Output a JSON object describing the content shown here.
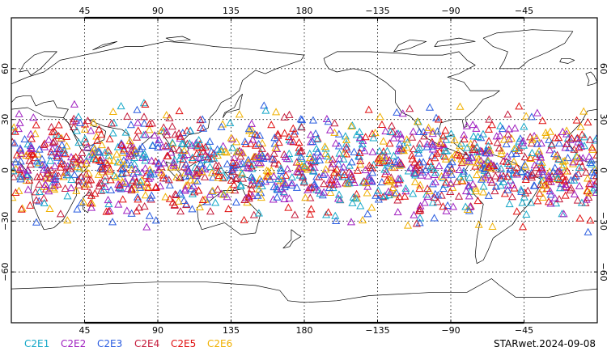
{
  "map": {
    "projection": "equirectangular",
    "lon_range": [
      0,
      360
    ],
    "lat_range": [
      -90,
      90
    ],
    "central_meridian": 180,
    "gridlines": "dotted",
    "lon_ticks": [
      {
        "value": 45,
        "label": "45"
      },
      {
        "value": 90,
        "label": "90"
      },
      {
        "value": 135,
        "label": "135"
      },
      {
        "value": 180,
        "label": "180"
      },
      {
        "value": 225,
        "label": "−135"
      },
      {
        "value": 270,
        "label": "−90"
      },
      {
        "value": 315,
        "label": "−45"
      }
    ],
    "lat_ticks": [
      {
        "value": 60,
        "label": "60"
      },
      {
        "value": 30,
        "label": "30"
      },
      {
        "value": 0,
        "label": "0"
      },
      {
        "value": -30,
        "label": "−30"
      },
      {
        "value": -60,
        "label": "−60"
      }
    ],
    "marker_symbol": "open-triangle",
    "observation_band_lat": [
      -40,
      45
    ]
  },
  "legend": {
    "items": [
      {
        "label": "C2E1",
        "color": "#16a8c8"
      },
      {
        "label": "C2E2",
        "color": "#a020c0"
      },
      {
        "label": "C2E3",
        "color": "#2a5ce0"
      },
      {
        "label": "C2E4",
        "color": "#c41a3a"
      },
      {
        "label": "C2E5",
        "color": "#e01010"
      },
      {
        "label": "C2E6",
        "color": "#f0b000"
      }
    ]
  },
  "footer": {
    "product_label": "STARwet.2024-09-08"
  }
}
